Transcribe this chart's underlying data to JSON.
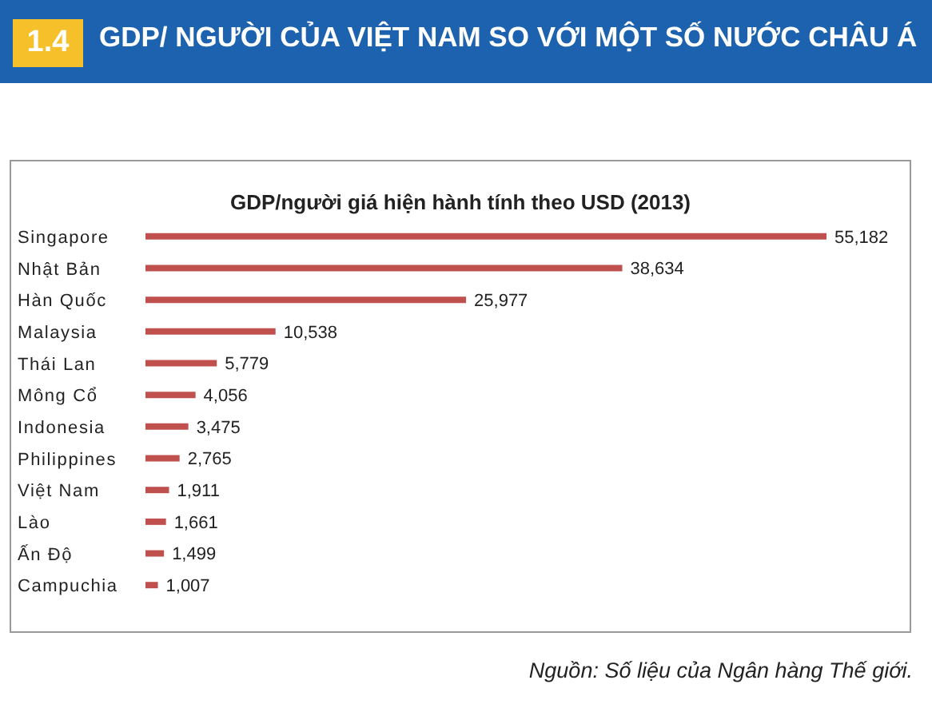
{
  "chart_data": {
    "type": "bar",
    "orientation": "horizontal",
    "title": "GDP/ NGƯỜI CỦA VIỆT NAM SO VỚI MỘT SỐ NƯỚC CHÂU Á",
    "subtitle": "GDP/người giá hiện hành tính theo USD (2013)",
    "annotations": [
      "1.4",
      "Nguồn: Số liệu của Ngân hàng Thế giới."
    ],
    "categories": [
      "Singapore",
      "Nhật Bản",
      "Hàn Quốc",
      "Malaysia",
      "Thái Lan",
      "Mông Cổ",
      "Indonesia",
      "Philippines",
      "Việt Nam",
      "Lào",
      "Ấn Độ",
      "Campuchia"
    ],
    "values": [
      55182,
      38634,
      25977,
      10538,
      5779,
      4056,
      3475,
      2765,
      1911,
      1661,
      1499,
      1007
    ],
    "value_labels": [
      "55,182",
      "38,634",
      "25,977",
      "10,538",
      "5,779",
      "4,056",
      "3,475",
      "2,765",
      "1,911",
      "1,661",
      "1,499",
      "1,007"
    ],
    "color": "#c0504d"
  }
}
